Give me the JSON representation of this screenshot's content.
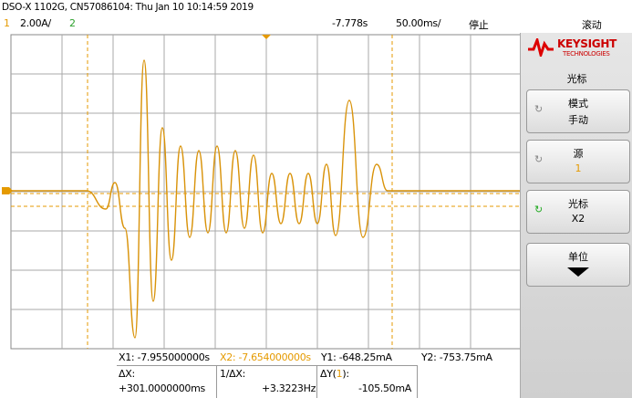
{
  "header": {
    "title": "DSO-X 1102G, CN57086104: Thu Jan 10 10:14:59 2019",
    "channel1": "1",
    "ch1_scale": "2.00A/",
    "channel2": "2",
    "time_offset": "-7.778s",
    "time_scale": "50.00ms/",
    "status": "停止",
    "mode": "滚动"
  },
  "panel": {
    "brand": "KEYSIGHT",
    "brand_sub": "TECHNOLOGIES",
    "title": "光标",
    "softkeys": [
      {
        "label": "模式",
        "value": "手动"
      },
      {
        "label": "源",
        "value": "1"
      },
      {
        "label": "光标",
        "value": "X2"
      },
      {
        "label": "单位"
      }
    ]
  },
  "readout": {
    "x1": "X1: -7.955000000s",
    "x2": "X2: -7.654000000s",
    "y1": "Y1: -648.25mA",
    "y2": "Y2: -753.75mA",
    "dx_label": "ΔX:",
    "dx_value": "+301.0000000ms",
    "inv_dx_label": "1/ΔX:",
    "inv_dx_value": "+3.3223Hz",
    "dy_label_start": "ΔY(",
    "dy_channel": "1",
    "dy_label_end": "):",
    "dy_value": "-105.50mA"
  }
}
